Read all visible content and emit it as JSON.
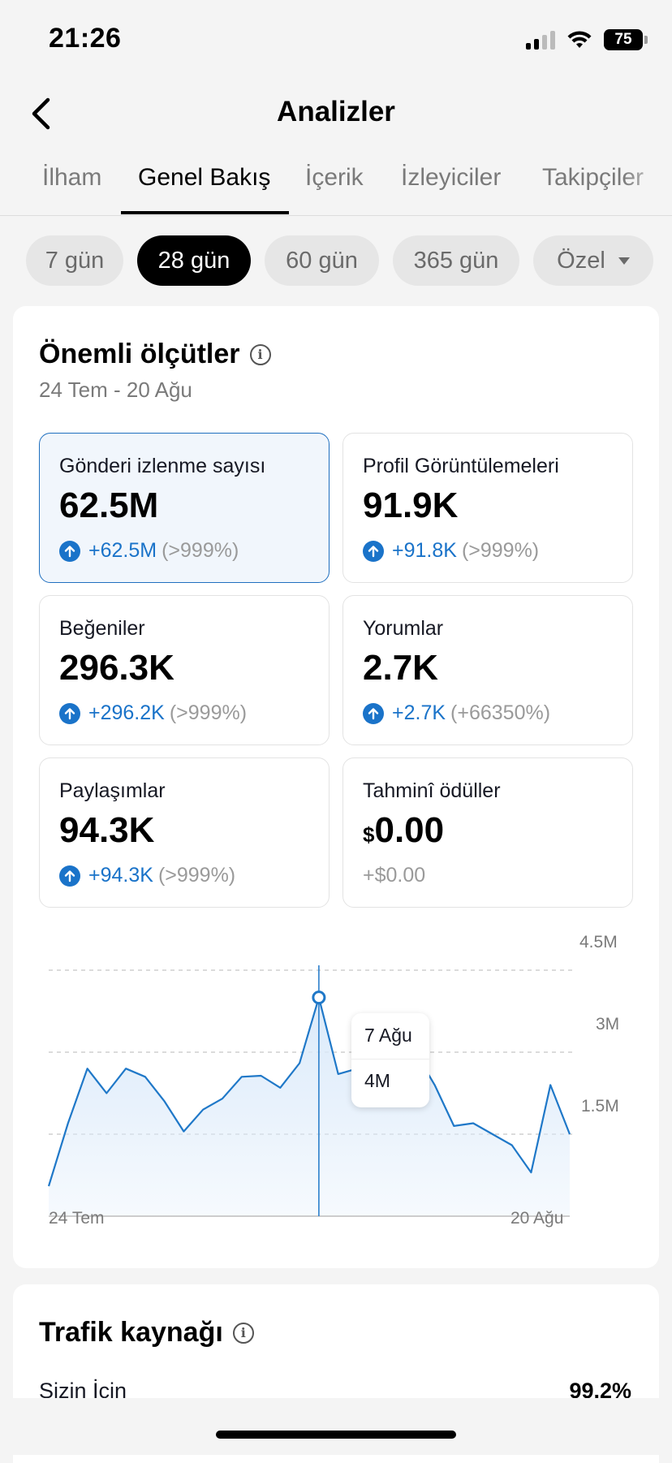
{
  "status_bar": {
    "time": "21:26",
    "battery": "75"
  },
  "header": {
    "title": "Analizler"
  },
  "tabs": [
    {
      "label": "İlham"
    },
    {
      "label": "Genel Bakış",
      "active": true
    },
    {
      "label": "İçerik"
    },
    {
      "label": "İzleyiciler"
    },
    {
      "label": "Takipçiler"
    }
  ],
  "periods": [
    {
      "label": "7 gün"
    },
    {
      "label": "28 gün",
      "active": true
    },
    {
      "label": "60 gün"
    },
    {
      "label": "365 gün"
    },
    {
      "label": "Özel"
    }
  ],
  "key_metrics": {
    "title": "Önemli ölçütler",
    "date_range": "24 Tem - 20 Ağu",
    "items": [
      {
        "label": "Gönderi izlenme sayısı",
        "value": "62.5M",
        "change": "+62.5M",
        "pct": "(>999%)"
      },
      {
        "label": "Profil Görüntülemeleri",
        "value": "91.9K",
        "change": "+91.8K",
        "pct": "(>999%)"
      },
      {
        "label": "Beğeniler",
        "value": "296.3K",
        "change": "+296.2K",
        "pct": "(>999%)"
      },
      {
        "label": "Yorumlar",
        "value": "2.7K",
        "change": "+2.7K",
        "pct": "(+66350%)"
      },
      {
        "label": "Paylaşımlar",
        "value": "94.3K",
        "change": "+94.3K",
        "pct": "(>999%)"
      },
      {
        "label": "Tahminî ödüller",
        "currency": "$",
        "value": "0.00",
        "change": "+$0.00"
      }
    ]
  },
  "chart_data": {
    "type": "area",
    "x_start_label": "24 Tem",
    "x_end_label": "20 Ağu",
    "y_ticks": [
      "4.5M",
      "3M",
      "1.5M"
    ],
    "ylim": [
      0,
      4.5
    ],
    "values": [
      0.55,
      1.7,
      2.7,
      2.25,
      2.7,
      2.55,
      2.1,
      1.55,
      1.95,
      2.15,
      2.55,
      2.57,
      2.35,
      2.8,
      4.0,
      2.6,
      2.7,
      3.5,
      3.45,
      3.0,
      2.4,
      1.65,
      1.7,
      1.5,
      1.3,
      0.8,
      2.4,
      1.5
    ],
    "highlight_index": 14,
    "tooltip": {
      "date": "7 Ağu",
      "value": "4M"
    },
    "colors": {
      "line": "#1f78c8",
      "fill": "#dbeafa",
      "grid": "#cfcfcf"
    }
  },
  "traffic": {
    "title": "Trafik kaynağı",
    "rows": [
      {
        "label": "Sizin İcin",
        "pct": "99.2%"
      }
    ]
  }
}
